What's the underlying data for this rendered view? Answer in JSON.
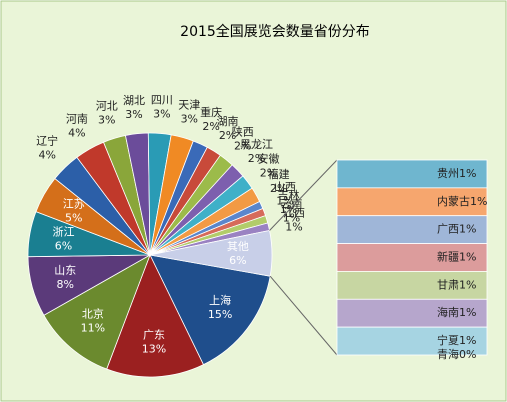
{
  "chart_data": {
    "type": "pie",
    "title": "2015全国展览会数量省份分布",
    "categories": [
      "上海",
      "广东",
      "北京",
      "山东",
      "浙江",
      "江苏",
      "辽宁",
      "河南",
      "河北",
      "湖北",
      "四川",
      "天津",
      "重庆",
      "湖南",
      "陕西",
      "黑龙江",
      "安徽",
      "福建",
      "山西",
      "吉林",
      "云南",
      "江西",
      "其他"
    ],
    "values": [
      15,
      13,
      11,
      8,
      6,
      5,
      4,
      4,
      3,
      3,
      3,
      3,
      2,
      2,
      2,
      2,
      2,
      2,
      1,
      1,
      1,
      1,
      6
    ],
    "value_labels": [
      "15%",
      "13%",
      "11%",
      "8%",
      "6%",
      "5%",
      "4%",
      "4%",
      "3%",
      "3%",
      "3%",
      "3%",
      "2%",
      "2%",
      "2%",
      "2%",
      "2%",
      "2%",
      "1%",
      "1%",
      "1%",
      "1%",
      "6%"
    ],
    "colors": [
      "#1f4e8c",
      "#9b2020",
      "#6b8a2e",
      "#5b3a7a",
      "#1a7f91",
      "#d46f1a",
      "#2c5fa8",
      "#c0392b",
      "#8aa63a",
      "#6b4c9a",
      "#2a9bb5",
      "#f08a24",
      "#3a6ab8",
      "#c84a3a",
      "#9cbb4a",
      "#7d5fae",
      "#3fb0c8",
      "#f29a44",
      "#5a86cc",
      "#d66a5a",
      "#b2cc6a",
      "#9a82c2",
      "#c8cfe8"
    ],
    "breakout": {
      "categories": [
        "贵州",
        "内蒙古",
        "广西",
        "新疆",
        "甘肃",
        "海南",
        "宁夏",
        "青海"
      ],
      "values": [
        1,
        1,
        1,
        1,
        1,
        1,
        1,
        0
      ],
      "value_labels": [
        "1%",
        "1%",
        "1%",
        "1%",
        "1%",
        "1%",
        "1%",
        "0%"
      ],
      "colors": [
        "#6fb6cf",
        "#f6a66e",
        "#9fb6d8",
        "#dc9c9c",
        "#c7d6a2",
        "#b6a6cc",
        "#a6d4e2",
        "#f4b48c"
      ]
    }
  }
}
